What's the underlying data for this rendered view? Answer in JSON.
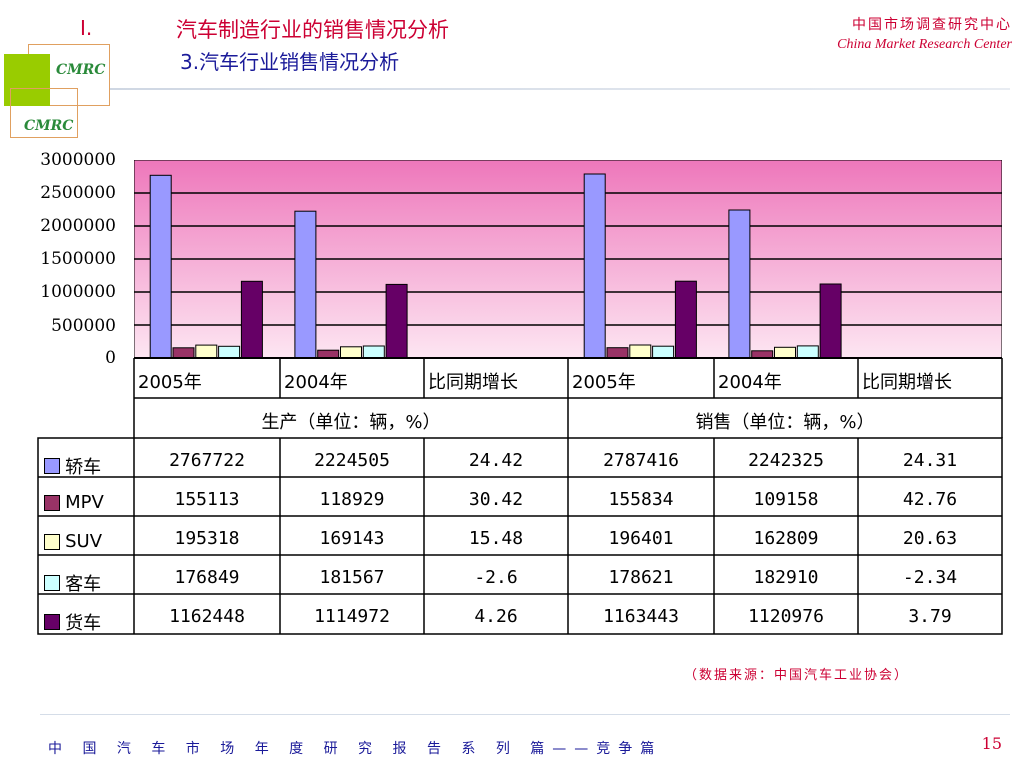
{
  "header": {
    "section_number": "I.",
    "title": "汽车制造行业的销售情况分析",
    "subtitle": "3.汽车行业销售情况分析",
    "org_cn": "中国市场调查研究中心",
    "org_en": "China Market Research Center",
    "logo_text": "CMRC"
  },
  "footer": {
    "series": "中 国 汽 车 市 场 年 度 研 究 报 告 系 列 篇——竞争篇",
    "page": "15",
    "source": "（数据来源：中国汽车工业协会）"
  },
  "colors": {
    "bg_top": "#ee77bb",
    "bg_bottom": "#fde6f2",
    "series": [
      "#9999ff",
      "#993366",
      "#ffffcc",
      "#ccffff",
      "#660066"
    ],
    "accent": "#cc0033",
    "navy": "#1a1a99",
    "logo_green": "#99cc00"
  },
  "chart_data": {
    "type": "bar",
    "groups": [
      "生产（单位：辆，%）",
      "销售（单位：辆，%）"
    ],
    "categories": [
      "2005年",
      "2004年",
      "比同期增长",
      "2005年",
      "2004年",
      "比同期增长"
    ],
    "ylim": [
      0,
      3000000
    ],
    "yticks": [
      "3000000",
      "2500000",
      "2000000",
      "1500000",
      "1000000",
      "500000",
      "0"
    ],
    "grid": true,
    "legend": "table-left",
    "series": [
      {
        "name": "轿车",
        "values": [
          2767722,
          2224505,
          24.42,
          2787416,
          2242325,
          24.31
        ],
        "labels": [
          "2767722",
          "2224505",
          "24.42",
          "2787416",
          "2242325",
          "24.31"
        ]
      },
      {
        "name": "MPV",
        "values": [
          155113,
          118929,
          30.42,
          155834,
          109158,
          42.76
        ],
        "labels": [
          "155113",
          "118929",
          "30.42",
          "155834",
          "109158",
          "42.76"
        ]
      },
      {
        "name": "SUV",
        "values": [
          195318,
          169143,
          15.48,
          196401,
          162809,
          20.63
        ],
        "labels": [
          "195318",
          "169143",
          "15.48",
          "196401",
          "162809",
          "20.63"
        ]
      },
      {
        "name": "客车",
        "values": [
          176849,
          181567,
          -2.6,
          178621,
          182910,
          -2.34
        ],
        "labels": [
          "176849",
          "181567",
          "-2.6",
          "178621",
          "182910",
          "-2.34"
        ]
      },
      {
        "name": "货车",
        "values": [
          1162448,
          1114972,
          4.26,
          1163443,
          1120976,
          3.79
        ],
        "labels": [
          "1162448",
          "1114972",
          "4.26",
          "1163443",
          "1120976",
          "3.79"
        ]
      }
    ]
  }
}
